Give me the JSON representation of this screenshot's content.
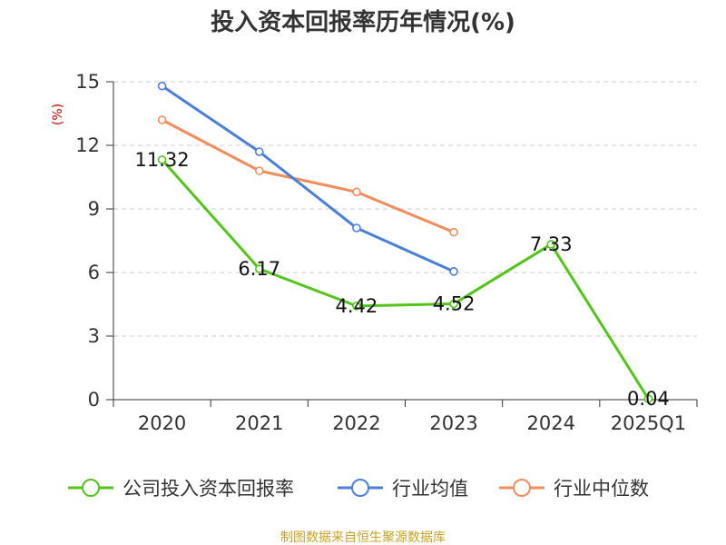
{
  "chart_data": {
    "type": "line",
    "title": "投入资本回报率历年情况(%)",
    "ylabel": "(%)",
    "xlabel": "",
    "categories": [
      "2020",
      "2021",
      "2022",
      "2023",
      "2024",
      "2025Q1"
    ],
    "ylim": [
      0,
      15
    ],
    "yticks": [
      0,
      3,
      6,
      9,
      12,
      15
    ],
    "grid": true,
    "legend_position": "bottom",
    "series": [
      {
        "name": "公司投入资本回报率",
        "color": "#52c41a",
        "values": [
          11.32,
          6.17,
          4.42,
          4.52,
          7.33,
          0.04
        ],
        "labels": [
          "11.32",
          "6.17",
          "4.42",
          "4.52",
          "7.33",
          "0.04"
        ]
      },
      {
        "name": "行业均值",
        "color": "#4a7fd9",
        "values": [
          14.8,
          11.7,
          8.1,
          6.05,
          null,
          null
        ]
      },
      {
        "name": "行业中位数",
        "color": "#f28c5a",
        "values": [
          13.2,
          10.8,
          9.8,
          7.9,
          null,
          null
        ]
      }
    ]
  },
  "source": "制图数据来自恒生聚源数据库"
}
